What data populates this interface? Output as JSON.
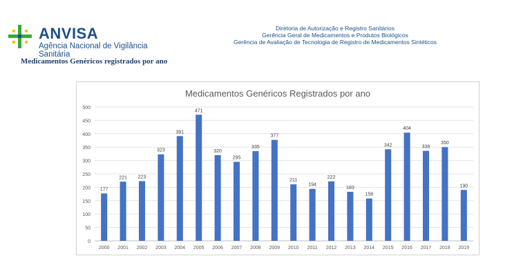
{
  "header": {
    "logo_text": "ANVISA",
    "logo_subtitle": "Agência Nacional de Vigilância Sanitária",
    "dept_lines": [
      "Diretoria de Autorização e Registro Sanitários",
      "Gerência Geral de Medicamentos e Produtos Biológicos",
      "Gerência de Avaliação de Tecnologia de Registro de Medicamentos Sintéticos"
    ],
    "section_title": "Medicamentos Genéricos registrados por ano"
  },
  "colors": {
    "brand_blue": "#1c4e8c",
    "logo_green": "#3aa935",
    "logo_yellow": "#f2c400",
    "bar": "#4472c4"
  },
  "chart_data": {
    "type": "bar",
    "title": "Medicamentos Genéricos Registrados por ano",
    "xlabel": "",
    "ylabel": "",
    "categories": [
      "2000",
      "2001",
      "2002",
      "2003",
      "2004",
      "2005",
      "2006",
      "2007",
      "2008",
      "2009",
      "2010",
      "2011",
      "2012",
      "2013",
      "2014",
      "2015",
      "2016",
      "2017",
      "2018",
      "2019"
    ],
    "values": [
      177,
      221,
      223,
      323,
      391,
      471,
      320,
      295,
      335,
      377,
      211,
      194,
      222,
      183,
      158,
      342,
      404,
      336,
      350,
      190
    ],
    "ylim": [
      0,
      500
    ],
    "yticks": [
      0,
      50,
      100,
      150,
      200,
      250,
      300,
      350,
      400,
      450,
      500
    ],
    "grid": true,
    "legend": "none",
    "data_labels": true
  }
}
